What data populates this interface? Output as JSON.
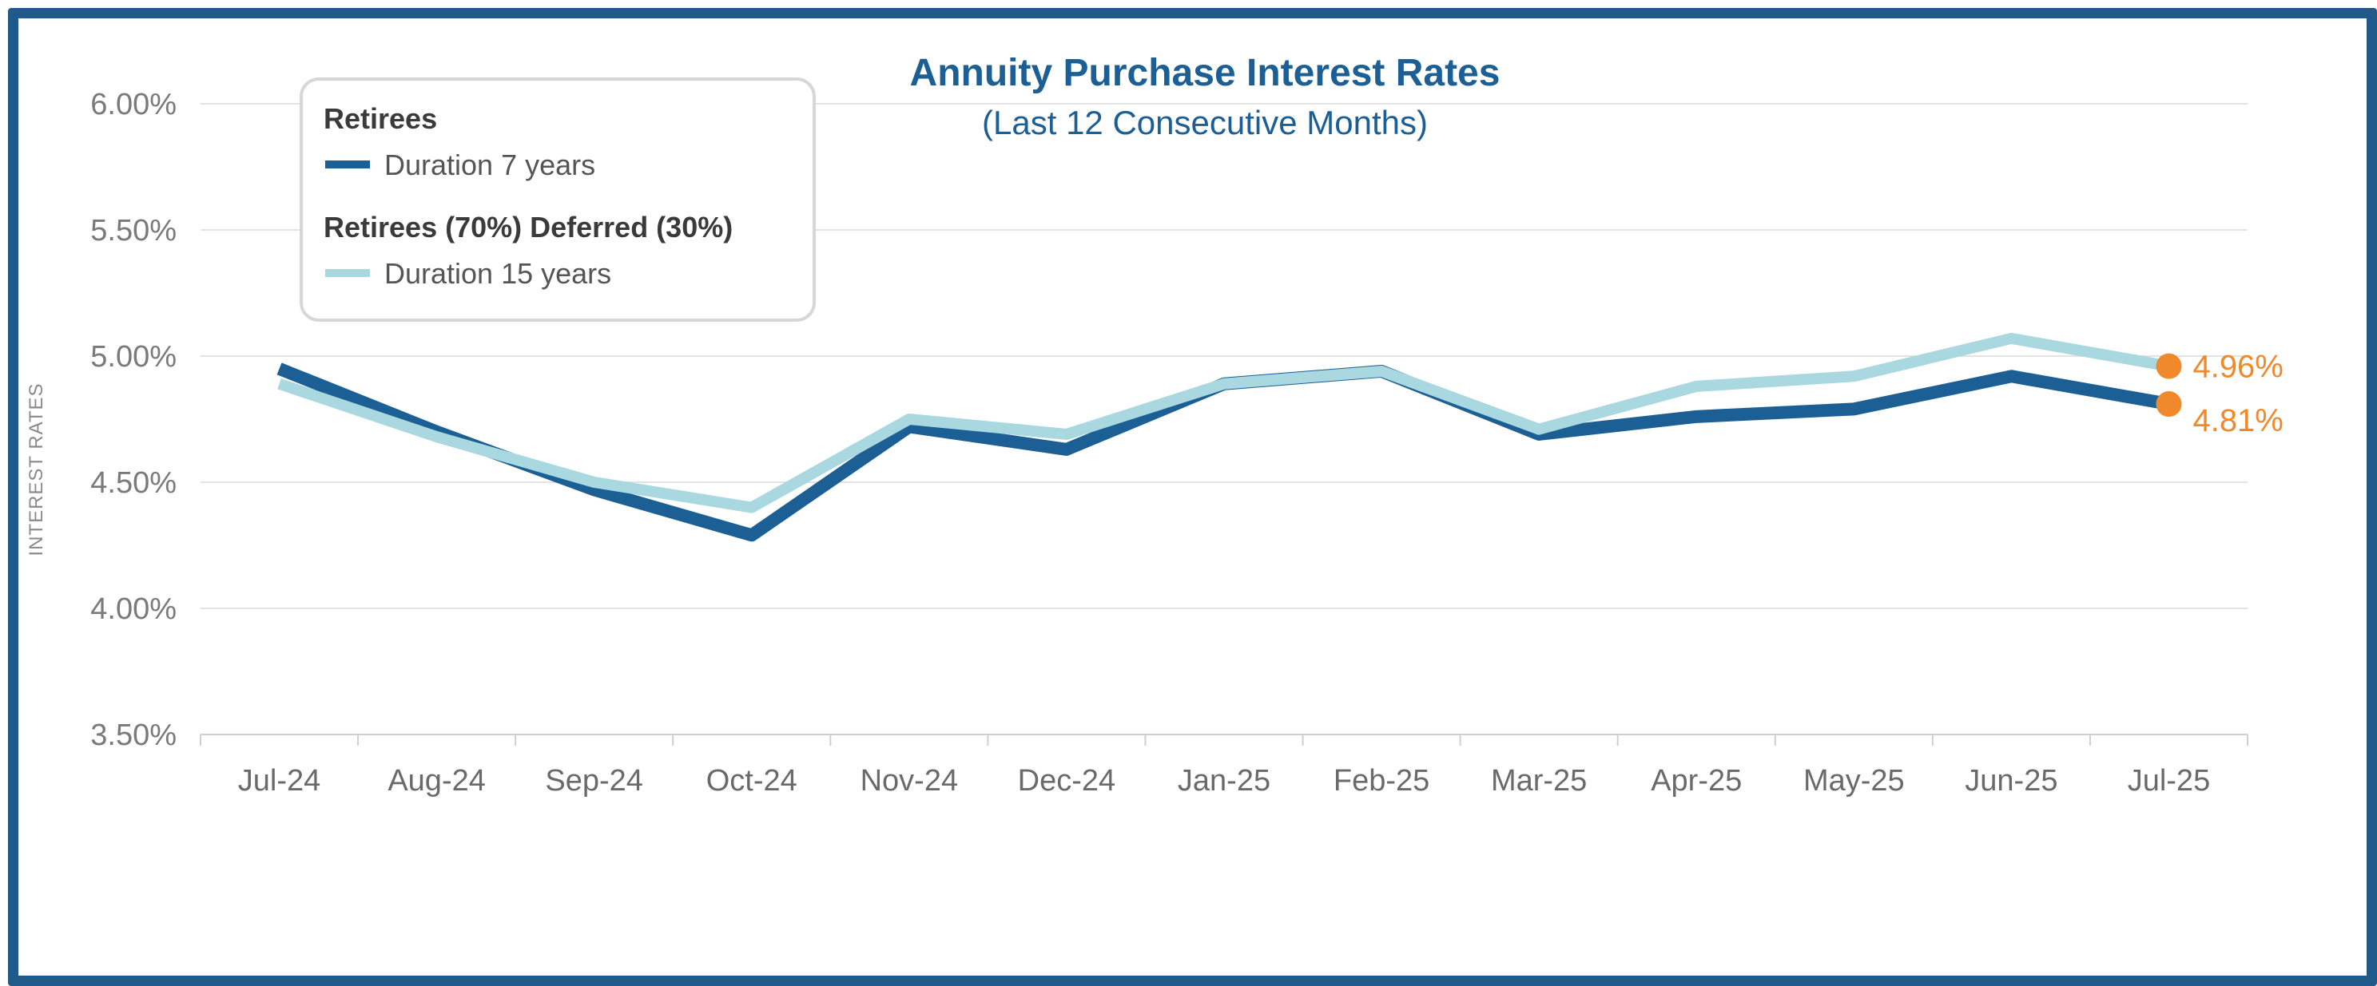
{
  "chart_data": {
    "type": "line",
    "title": "Annuity Purchase Interest Rates",
    "subtitle": "(Last 12 Consecutive Months)",
    "xlabel": "",
    "ylabel": "INTEREST RATES",
    "categories": [
      "Jul-24",
      "Aug-24",
      "Sep-24",
      "Oct-24",
      "Nov-24",
      "Dec-24",
      "Jan-25",
      "Feb-25",
      "Mar-25",
      "Apr-25",
      "May-25",
      "Jun-25",
      "Jul-25"
    ],
    "ylim": [
      3.5,
      6.0
    ],
    "yticks": [
      "3.50%",
      "4.00%",
      "4.50%",
      "5.00%",
      "5.50%",
      "6.00%"
    ],
    "ytick_values": [
      3.5,
      4.0,
      4.5,
      5.0,
      5.5,
      6.0
    ],
    "grid": true,
    "legend_position": "top-left",
    "series": [
      {
        "group": "Retirees",
        "name": "Duration 7 years",
        "color": "#1b5f95",
        "values": [
          4.95,
          4.7,
          4.47,
          4.29,
          4.72,
          4.63,
          4.89,
          4.94,
          4.69,
          4.76,
          4.79,
          4.92,
          4.81
        ],
        "end_label": "4.81%"
      },
      {
        "group": "Retirees (70%) Deferred (30%)",
        "name": "Duration 15 years",
        "color": "#a9d8e0",
        "values": [
          4.89,
          4.68,
          4.5,
          4.4,
          4.75,
          4.69,
          4.89,
          4.94,
          4.71,
          4.88,
          4.92,
          5.07,
          4.96
        ],
        "end_label": "4.96%"
      }
    ],
    "end_marker_color": "#f0892c"
  }
}
